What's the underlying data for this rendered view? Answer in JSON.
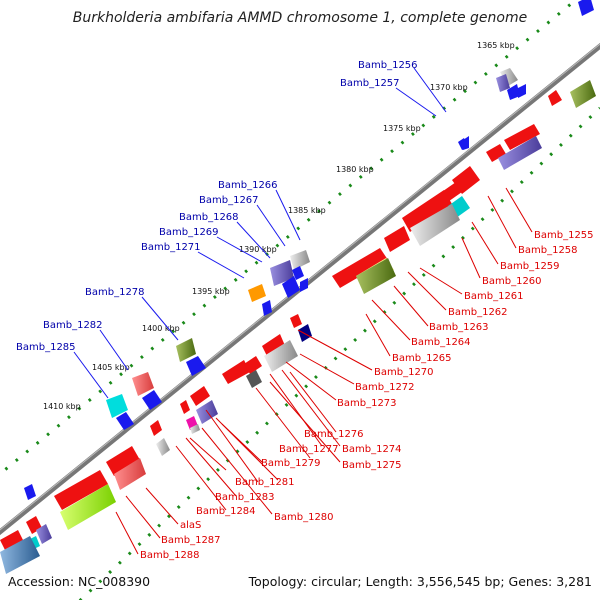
{
  "title": "Burkholderia ambifaria AMMD chromosome 1, complete genome",
  "footer": {
    "accession": "Accession: NC_008390",
    "summary": "Topology: circular; Length: 3,556,545 bp; Genes: 3,281"
  },
  "colors": {
    "backbone": "#777777",
    "forward_label": "#0000aa",
    "reverse_label": "#dd0000",
    "dots": "#1a8a1a"
  },
  "kbp_ticks": [
    "1365 kbp",
    "1370 kbp",
    "1375 kbp",
    "1380 kbp",
    "1385 kbp",
    "1390 kbp",
    "1395 kbp",
    "1400 kbp",
    "1405 kbp",
    "1410 kbp"
  ],
  "forward_labels": [
    "Bamb_1256",
    "Bamb_1257",
    "Bamb_1266",
    "Bamb_1267",
    "Bamb_1268",
    "Bamb_1269",
    "Bamb_1271",
    "Bamb_1278",
    "Bamb_1282",
    "Bamb_1285"
  ],
  "reverse_labels": [
    "Bamb_1255",
    "Bamb_1258",
    "Bamb_1259",
    "Bamb_1260",
    "Bamb_1261",
    "Bamb_1262",
    "Bamb_1263",
    "Bamb_1264",
    "Bamb_1265",
    "Bamb_1270",
    "Bamb_1272",
    "Bamb_1273",
    "Bamb_1276",
    "Bamb_1274",
    "Bamb_1277",
    "Bamb_1275",
    "Bamb_1279",
    "Bamb_1281",
    "Bamb_1283",
    "Bamb_1284",
    "Bamb_1280",
    "alaS",
    "Bamb_1287",
    "Bamb_1288"
  ]
}
